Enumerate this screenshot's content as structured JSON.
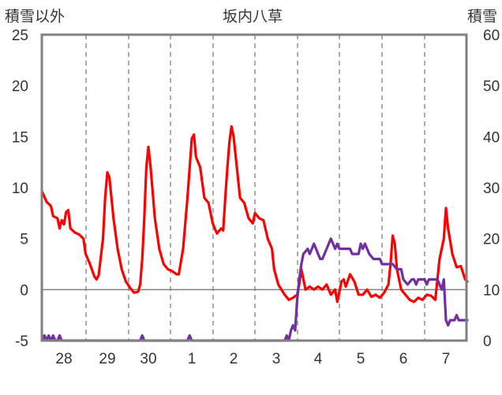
{
  "chart_data": {
    "type": "line",
    "title": "坂内八草",
    "left_axis_label": "積雪以外",
    "right_axis_label": "積雪",
    "left_ylim": [
      -5,
      25
    ],
    "left_ticks": [
      "25",
      "20",
      "15",
      "10",
      "5",
      "0",
      "-5"
    ],
    "right_ylim": [
      0,
      60
    ],
    "right_ticks": [
      "60",
      "50",
      "40",
      "30",
      "20",
      "10",
      "0"
    ],
    "x_ticks": [
      "28",
      "29",
      "30",
      "1",
      "2",
      "3",
      "4",
      "5",
      "6",
      "7"
    ],
    "grid": "dashed vertical lines at day boundaries",
    "colors": {
      "red_series": "#ff0000",
      "purple_series": "#7030a0",
      "frame": "#808080"
    },
    "series": [
      {
        "axis": "left",
        "color": "#ff0000",
        "points": [
          [
            27.5,
            9.6
          ],
          [
            27.6,
            8.6
          ],
          [
            27.7,
            8.2
          ],
          [
            27.75,
            7.2
          ],
          [
            27.85,
            7.0
          ],
          [
            27.9,
            6.0
          ],
          [
            27.95,
            6.8
          ],
          [
            28.0,
            6.4
          ],
          [
            28.05,
            7.6
          ],
          [
            28.1,
            7.8
          ],
          [
            28.15,
            6.0
          ],
          [
            28.25,
            5.6
          ],
          [
            28.35,
            5.4
          ],
          [
            28.45,
            5.0
          ],
          [
            28.5,
            3.5
          ],
          [
            28.6,
            2.5
          ],
          [
            28.7,
            1.3
          ],
          [
            28.75,
            1.0
          ],
          [
            28.8,
            1.4
          ],
          [
            28.9,
            5.0
          ],
          [
            28.95,
            9.0
          ],
          [
            29.0,
            11.5
          ],
          [
            29.05,
            11.0
          ],
          [
            29.15,
            7.0
          ],
          [
            29.25,
            4.0
          ],
          [
            29.35,
            2.0
          ],
          [
            29.45,
            0.8
          ],
          [
            29.55,
            0.2
          ],
          [
            29.65,
            -0.3
          ],
          [
            29.75,
            -0.2
          ],
          [
            29.8,
            0.5
          ],
          [
            29.85,
            3.0
          ],
          [
            29.9,
            7.0
          ],
          [
            29.95,
            12.0
          ],
          [
            30.0,
            14.0
          ],
          [
            30.05,
            12.0
          ],
          [
            30.15,
            7.0
          ],
          [
            30.25,
            4.0
          ],
          [
            30.35,
            2.5
          ],
          [
            30.45,
            2.0
          ],
          [
            30.55,
            1.8
          ],
          [
            30.65,
            1.5
          ],
          [
            30.7,
            1.5
          ],
          [
            30.8,
            4.0
          ],
          [
            30.9,
            9.0
          ],
          [
            31.0,
            14.8
          ],
          [
            31.05,
            15.2
          ],
          [
            31.1,
            13.0
          ],
          [
            31.2,
            12.0
          ],
          [
            31.3,
            9.0
          ],
          [
            31.4,
            8.5
          ],
          [
            31.5,
            6.5
          ],
          [
            31.6,
            5.5
          ],
          [
            31.7,
            6.0
          ],
          [
            31.75,
            5.8
          ],
          [
            31.8,
            9.0
          ],
          [
            31.85,
            12.0
          ],
          [
            31.9,
            14.5
          ],
          [
            31.95,
            16.0
          ],
          [
            32.0,
            15.0
          ],
          [
            32.05,
            13.0
          ],
          [
            32.15,
            9.0
          ],
          [
            32.25,
            8.5
          ],
          [
            32.35,
            7.0
          ],
          [
            32.45,
            6.5
          ],
          [
            32.5,
            7.5
          ],
          [
            32.6,
            7.0
          ],
          [
            32.7,
            6.8
          ],
          [
            32.8,
            5.0
          ],
          [
            32.9,
            4.0
          ],
          [
            32.95,
            2.0
          ],
          [
            33.05,
            0.5
          ],
          [
            33.2,
            -0.5
          ],
          [
            33.3,
            -1.0
          ],
          [
            33.4,
            -0.8
          ],
          [
            33.5,
            -0.5
          ],
          [
            33.55,
            0.5
          ],
          [
            33.6,
            2.0
          ],
          [
            33.65,
            1.0
          ],
          [
            33.7,
            0.0
          ],
          [
            33.8,
            0.3
          ],
          [
            33.9,
            0.0
          ],
          [
            34.0,
            0.3
          ],
          [
            34.1,
            0.0
          ],
          [
            34.2,
            0.5
          ],
          [
            34.3,
            -0.5
          ],
          [
            34.4,
            0.0
          ],
          [
            34.45,
            -1.2
          ],
          [
            34.55,
            0.8
          ],
          [
            34.6,
            1.0
          ],
          [
            34.65,
            0.3
          ],
          [
            34.75,
            1.5
          ],
          [
            34.85,
            0.8
          ],
          [
            34.95,
            -0.5
          ],
          [
            35.05,
            -0.5
          ],
          [
            35.15,
            0.0
          ],
          [
            35.25,
            -0.7
          ],
          [
            35.35,
            -0.5
          ],
          [
            35.45,
            -0.8
          ],
          [
            35.55,
            -0.3
          ],
          [
            35.65,
            0.5
          ],
          [
            35.7,
            2.5
          ],
          [
            35.75,
            5.3
          ],
          [
            35.8,
            4.5
          ],
          [
            35.85,
            2.0
          ],
          [
            35.95,
            0.0
          ],
          [
            36.05,
            -0.5
          ],
          [
            36.15,
            -1.0
          ],
          [
            36.25,
            -1.2
          ],
          [
            36.35,
            -0.8
          ],
          [
            36.45,
            -1.0
          ],
          [
            36.55,
            -0.5
          ],
          [
            36.65,
            -0.6
          ],
          [
            36.75,
            -1.0
          ],
          [
            36.85,
            3.0
          ],
          [
            36.95,
            5.0
          ],
          [
            37.0,
            8.0
          ],
          [
            37.05,
            6.0
          ],
          [
            37.15,
            3.5
          ],
          [
            37.25,
            2.2
          ],
          [
            37.35,
            2.3
          ],
          [
            37.45,
            1.0
          ],
          [
            37.5,
            0.8
          ]
        ]
      },
      {
        "axis": "right",
        "color": "#7030a0",
        "points": [
          [
            27.5,
            0
          ],
          [
            27.55,
            1
          ],
          [
            27.6,
            0
          ],
          [
            27.65,
            1
          ],
          [
            27.7,
            0
          ],
          [
            27.75,
            1
          ],
          [
            27.8,
            0
          ],
          [
            27.85,
            0
          ],
          [
            27.9,
            1
          ],
          [
            27.95,
            0
          ],
          [
            28.0,
            0
          ],
          [
            29.8,
            0
          ],
          [
            29.85,
            1
          ],
          [
            29.9,
            0
          ],
          [
            30.9,
            0
          ],
          [
            30.95,
            1
          ],
          [
            31.0,
            0
          ],
          [
            33.2,
            0
          ],
          [
            33.25,
            1
          ],
          [
            33.3,
            0
          ],
          [
            33.35,
            2
          ],
          [
            33.4,
            3
          ],
          [
            33.45,
            2
          ],
          [
            33.5,
            8
          ],
          [
            33.55,
            12
          ],
          [
            33.6,
            15
          ],
          [
            33.65,
            17
          ],
          [
            33.75,
            18
          ],
          [
            33.8,
            17
          ],
          [
            33.85,
            18
          ],
          [
            33.9,
            19
          ],
          [
            33.95,
            18
          ],
          [
            34.0,
            17
          ],
          [
            34.05,
            16
          ],
          [
            34.1,
            16
          ],
          [
            34.15,
            17
          ],
          [
            34.25,
            19
          ],
          [
            34.3,
            20
          ],
          [
            34.35,
            19
          ],
          [
            34.4,
            18
          ],
          [
            34.45,
            19
          ],
          [
            34.5,
            18
          ],
          [
            34.55,
            18
          ],
          [
            34.75,
            18
          ],
          [
            34.8,
            17
          ],
          [
            34.85,
            17
          ],
          [
            34.95,
            17
          ],
          [
            35.0,
            19
          ],
          [
            35.05,
            18
          ],
          [
            35.1,
            19
          ],
          [
            35.15,
            18
          ],
          [
            35.2,
            17
          ],
          [
            35.3,
            16
          ],
          [
            35.45,
            16
          ],
          [
            35.5,
            15
          ],
          [
            35.75,
            15
          ],
          [
            35.85,
            14
          ],
          [
            35.95,
            14
          ],
          [
            36.0,
            12
          ],
          [
            36.1,
            11
          ],
          [
            36.2,
            12
          ],
          [
            36.25,
            12
          ],
          [
            36.3,
            11
          ],
          [
            36.35,
            12
          ],
          [
            36.5,
            12
          ],
          [
            36.55,
            11
          ],
          [
            36.6,
            12
          ],
          [
            36.8,
            12
          ],
          [
            36.85,
            11
          ],
          [
            36.9,
            10
          ],
          [
            36.95,
            12
          ],
          [
            37.0,
            4
          ],
          [
            37.05,
            3
          ],
          [
            37.1,
            4
          ],
          [
            37.2,
            4
          ],
          [
            37.25,
            5
          ],
          [
            37.3,
            4
          ],
          [
            37.5,
            4
          ]
        ]
      }
    ]
  }
}
